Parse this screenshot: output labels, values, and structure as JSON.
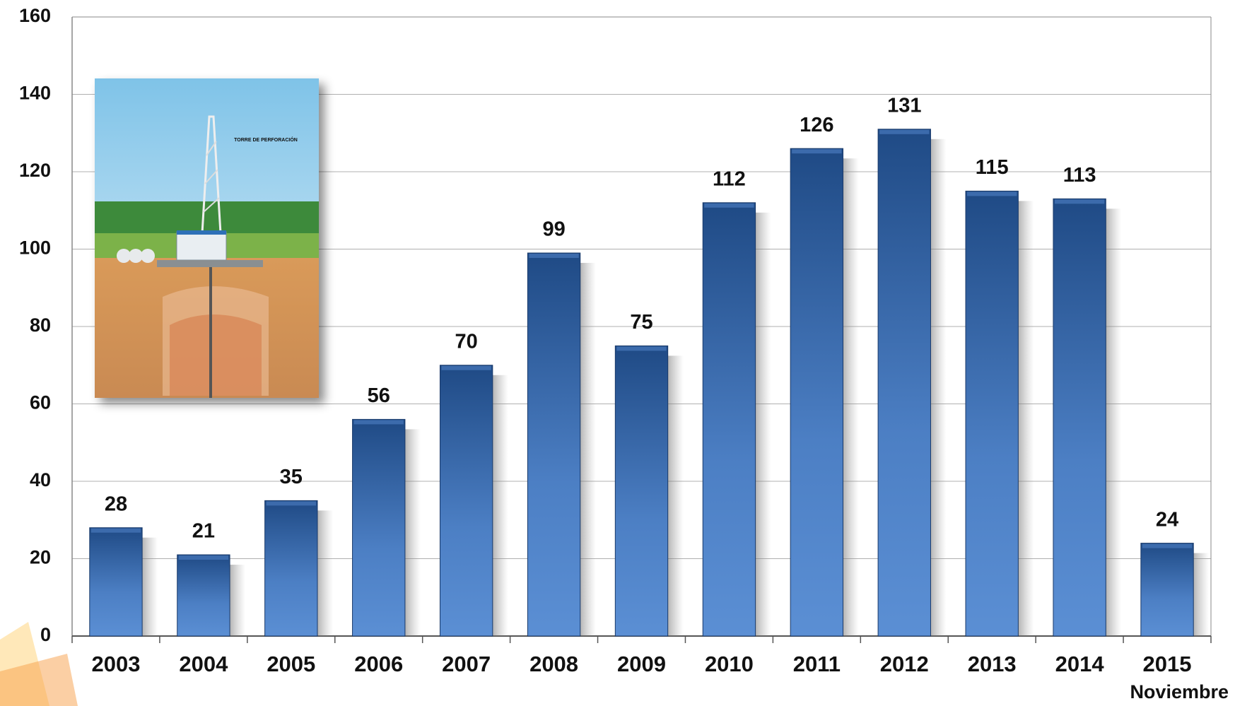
{
  "chart_data": {
    "type": "bar",
    "categories": [
      "2003",
      "2004",
      "2005",
      "2006",
      "2007",
      "2008",
      "2009",
      "2010",
      "2011",
      "2012",
      "2013",
      "2014",
      "2015"
    ],
    "values": [
      28,
      21,
      35,
      56,
      70,
      99,
      75,
      112,
      126,
      131,
      115,
      113,
      24
    ],
    "color": "#3f6fb0",
    "ylim": [
      0,
      160
    ],
    "yticks": [
      0,
      20,
      40,
      60,
      80,
      100,
      120,
      140,
      160
    ],
    "grid": true,
    "annotation": "Noviembre",
    "inset_label": "TORRE DE PERFORACIÓN"
  }
}
